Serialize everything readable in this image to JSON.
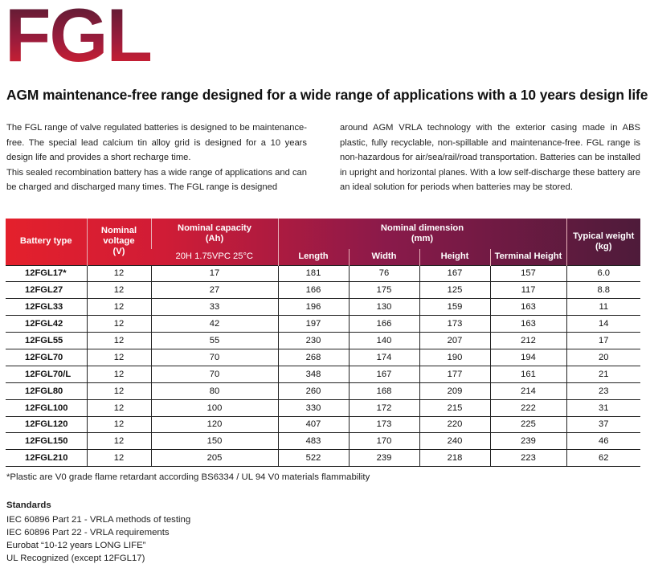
{
  "logo": {
    "text": "FGL"
  },
  "headline": "AGM maintenance-free range designed for a wide range of applications with a 10 years design life",
  "intro": {
    "left_p1": "The FGL range of valve regulated batteries is designed to be maintenance-free. The special lead calcium tin alloy grid is designed for a 10 years design life and provides a short recharge time.",
    "left_p2": "This sealed recombination battery has a wide range of applications and can be charged and discharged many times. The FGL range is designed",
    "right_p1": "around AGM VRLA technology with the exterior casing made in ABS plastic, fully recyclable, non-spillable and maintenance-free. FGL range is non-hazardous for air/sea/rail/road transportation. Batteries can be installed in upright and horizontal planes. With a low self-discharge these battery are an ideal solution for periods when batteries may be stored."
  },
  "table": {
    "headers": {
      "battery_type": "Battery type",
      "nominal_voltage": "Nominal voltage (V)",
      "nominal_capacity": "Nominal capacity (Ah)",
      "capacity_condition": "20H 1.75VPC 25°C",
      "nominal_dimension": "Nominal dimension (mm)",
      "length": "Length",
      "width": "Width",
      "height": "Height",
      "terminal_height": "Terminal Height",
      "typical_weight": "Typical weight (kg)"
    },
    "rows": [
      [
        "12FGL17*",
        "12",
        "17",
        "181",
        "76",
        "167",
        "157",
        "6.0"
      ],
      [
        "12FGL27",
        "12",
        "27",
        "166",
        "175",
        "125",
        "117",
        "8.8"
      ],
      [
        "12FGL33",
        "12",
        "33",
        "196",
        "130",
        "159",
        "163",
        "11"
      ],
      [
        "12FGL42",
        "12",
        "42",
        "197",
        "166",
        "173",
        "163",
        "14"
      ],
      [
        "12FGL55",
        "12",
        "55",
        "230",
        "140",
        "207",
        "212",
        "17"
      ],
      [
        "12FGL70",
        "12",
        "70",
        "268",
        "174",
        "190",
        "194",
        "20"
      ],
      [
        "12FGL70/L",
        "12",
        "70",
        "348",
        "167",
        "177",
        "161",
        "21"
      ],
      [
        "12FGL80",
        "12",
        "80",
        "260",
        "168",
        "209",
        "214",
        "23"
      ],
      [
        "12FGL100",
        "12",
        "100",
        "330",
        "172",
        "215",
        "222",
        "31"
      ],
      [
        "12FGL120",
        "12",
        "120",
        "407",
        "173",
        "220",
        "225",
        "37"
      ],
      [
        "12FGL150",
        "12",
        "150",
        "483",
        "170",
        "240",
        "239",
        "46"
      ],
      [
        "12FGL210",
        "12",
        "205",
        "522",
        "239",
        "218",
        "223",
        "62"
      ]
    ]
  },
  "footnote": "*Plastic are V0 grade flame retardant according BS6334 / UL 94 V0 materials flammability",
  "standards": {
    "title": "Standards",
    "items": [
      "IEC 60896 Part 21 - VRLA methods of testing",
      "IEC 60896 Part 22 - VRLA requirements",
      "Eurobat “10-12 years LONG LIFE”",
      "UL Recognized (except 12FGL17)"
    ]
  },
  "colors": {
    "logo_top": "#5a1d33",
    "logo_bottom": "#e1202e",
    "header_left": "#e4202c",
    "header_right": "#4e1b3a"
  }
}
